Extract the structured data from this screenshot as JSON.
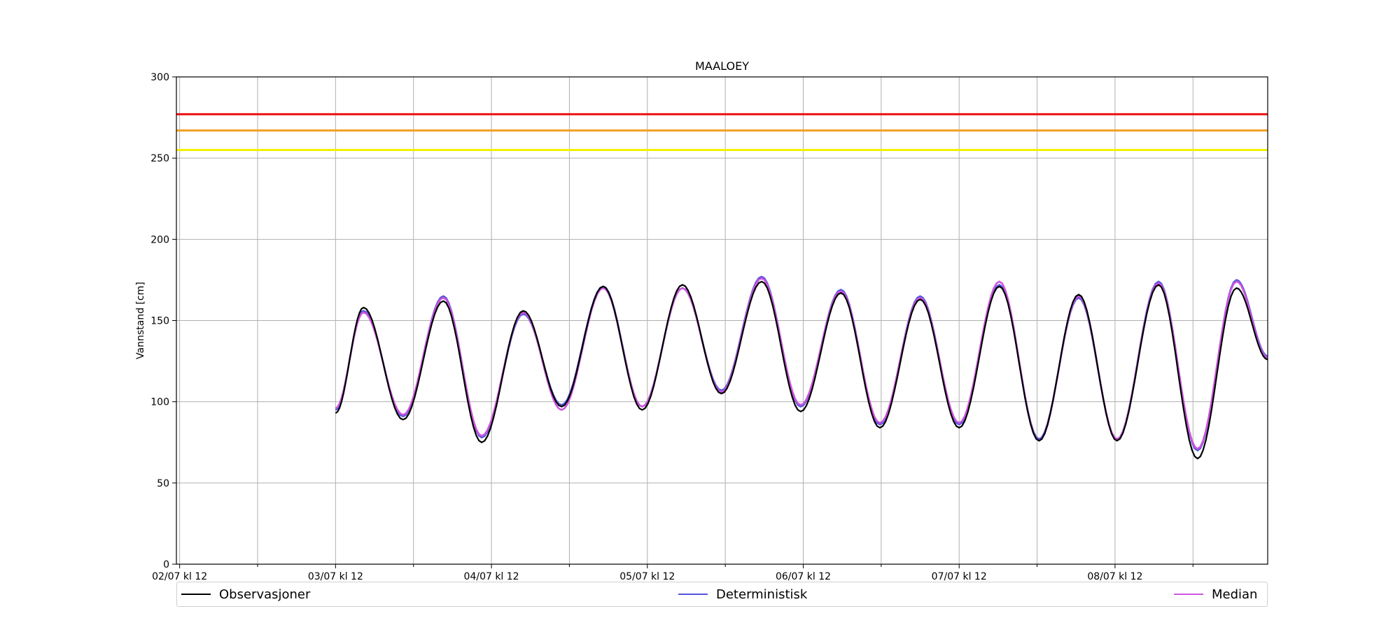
{
  "chart_data": {
    "type": "line",
    "title": "MAALOEY",
    "xlabel": "",
    "ylabel": "Vannstand [cm]",
    "ylim": [
      0,
      300
    ],
    "yticks": [
      0,
      50,
      100,
      150,
      200,
      250,
      300
    ],
    "x_unit": "hours since 02/07 kl 12",
    "xlim": [
      -0.5,
      167.5
    ],
    "xticks": [
      {
        "hour": 0,
        "label": "02/07 kl 12"
      },
      {
        "hour": 24,
        "label": "03/07 kl 12"
      },
      {
        "hour": 48,
        "label": "04/07 kl 12"
      },
      {
        "hour": 72,
        "label": "05/07 kl 12"
      },
      {
        "hour": 96,
        "label": "06/07 kl 12"
      },
      {
        "hour": 120,
        "label": "07/07 kl 12"
      },
      {
        "hour": 144,
        "label": "08/07 kl 12"
      }
    ],
    "minor_xticks": [
      12,
      36,
      60,
      84,
      108,
      132,
      156
    ],
    "grid": true,
    "thresholds": [
      {
        "value": 277,
        "color": "#ee1111"
      },
      {
        "value": 267,
        "color": "#f0a020"
      },
      {
        "value": 255,
        "color": "#f2f200"
      }
    ],
    "legend_position": "bottom",
    "series": [
      {
        "name": "Observasjoner",
        "color": "#000000",
        "x": [
          24,
          28.3,
          34.4,
          40.6,
          46.5,
          52.9,
          58.8,
          65.2,
          71.2,
          77.4,
          83.4,
          89.6,
          95.6,
          101.8,
          107.8,
          114.0,
          120.0,
          126.2,
          132.3,
          138.4,
          144.3,
          150.7,
          156.7,
          162.7,
          167.5
        ],
        "y": [
          93,
          158,
          89,
          162,
          75,
          156,
          97,
          171,
          95,
          172,
          105,
          174,
          94,
          167,
          84,
          163,
          84,
          171,
          76,
          166,
          76,
          172,
          65,
          170,
          126
        ]
      },
      {
        "name": "Deterministisk",
        "color": "#5555dd",
        "x": [
          24,
          28.3,
          34.4,
          40.6,
          46.5,
          52.9,
          58.8,
          65.2,
          71.2,
          77.4,
          83.4,
          89.6,
          95.6,
          101.8,
          107.8,
          114.0,
          120.0,
          126.2,
          132.3,
          138.4,
          144.3,
          150.7,
          156.7,
          162.7,
          167.5
        ],
        "y": [
          95,
          156,
          91,
          165,
          78,
          154,
          98,
          171,
          97,
          170,
          107,
          177,
          97,
          169,
          86,
          165,
          86,
          172,
          77,
          164,
          77,
          174,
          70,
          175,
          128
        ]
      },
      {
        "name": "Median",
        "color": "#cc55dd",
        "x": [
          24,
          28.3,
          34.4,
          40.6,
          46.5,
          52.9,
          58.8,
          65.2,
          71.2,
          77.4,
          83.4,
          89.6,
          95.6,
          101.8,
          107.8,
          114.0,
          120.0,
          126.2,
          132.3,
          138.4,
          144.3,
          150.7,
          156.7,
          162.7,
          167.5
        ],
        "y": [
          96,
          155,
          92,
          164,
          79,
          155,
          95,
          170,
          97,
          170,
          106,
          176,
          98,
          168,
          87,
          164,
          87,
          174,
          76,
          165,
          77,
          173,
          71,
          174,
          127
        ]
      }
    ]
  }
}
